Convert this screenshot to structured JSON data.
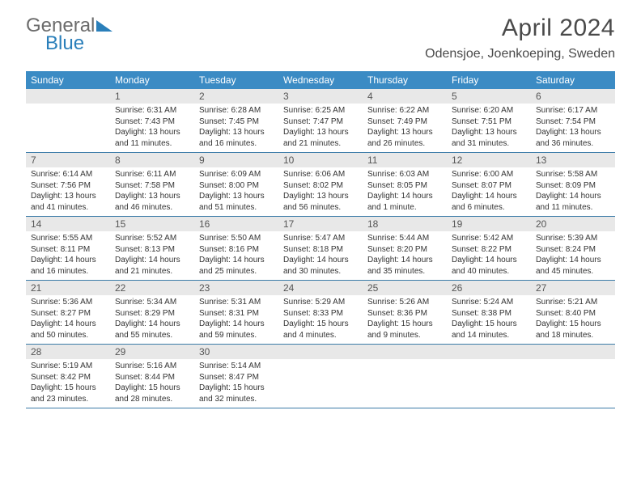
{
  "logo": {
    "text1": "General",
    "text2": "Blue"
  },
  "title": "April 2024",
  "location": "Odensjoe, Joenkoeping, Sweden",
  "colors": {
    "header_bar": "#3b8bc4",
    "daynum_bg": "#e8e8e8",
    "week_border": "#3b7ba8",
    "logo_gray": "#6c6c6c",
    "logo_blue": "#2a7fba"
  },
  "weekdays": [
    "Sunday",
    "Monday",
    "Tuesday",
    "Wednesday",
    "Thursday",
    "Friday",
    "Saturday"
  ],
  "weeks": [
    [
      {
        "n": "",
        "sr": "",
        "ss": "",
        "dl": ""
      },
      {
        "n": "1",
        "sr": "Sunrise: 6:31 AM",
        "ss": "Sunset: 7:43 PM",
        "dl": "Daylight: 13 hours and 11 minutes."
      },
      {
        "n": "2",
        "sr": "Sunrise: 6:28 AM",
        "ss": "Sunset: 7:45 PM",
        "dl": "Daylight: 13 hours and 16 minutes."
      },
      {
        "n": "3",
        "sr": "Sunrise: 6:25 AM",
        "ss": "Sunset: 7:47 PM",
        "dl": "Daylight: 13 hours and 21 minutes."
      },
      {
        "n": "4",
        "sr": "Sunrise: 6:22 AM",
        "ss": "Sunset: 7:49 PM",
        "dl": "Daylight: 13 hours and 26 minutes."
      },
      {
        "n": "5",
        "sr": "Sunrise: 6:20 AM",
        "ss": "Sunset: 7:51 PM",
        "dl": "Daylight: 13 hours and 31 minutes."
      },
      {
        "n": "6",
        "sr": "Sunrise: 6:17 AM",
        "ss": "Sunset: 7:54 PM",
        "dl": "Daylight: 13 hours and 36 minutes."
      }
    ],
    [
      {
        "n": "7",
        "sr": "Sunrise: 6:14 AM",
        "ss": "Sunset: 7:56 PM",
        "dl": "Daylight: 13 hours and 41 minutes."
      },
      {
        "n": "8",
        "sr": "Sunrise: 6:11 AM",
        "ss": "Sunset: 7:58 PM",
        "dl": "Daylight: 13 hours and 46 minutes."
      },
      {
        "n": "9",
        "sr": "Sunrise: 6:09 AM",
        "ss": "Sunset: 8:00 PM",
        "dl": "Daylight: 13 hours and 51 minutes."
      },
      {
        "n": "10",
        "sr": "Sunrise: 6:06 AM",
        "ss": "Sunset: 8:02 PM",
        "dl": "Daylight: 13 hours and 56 minutes."
      },
      {
        "n": "11",
        "sr": "Sunrise: 6:03 AM",
        "ss": "Sunset: 8:05 PM",
        "dl": "Daylight: 14 hours and 1 minute."
      },
      {
        "n": "12",
        "sr": "Sunrise: 6:00 AM",
        "ss": "Sunset: 8:07 PM",
        "dl": "Daylight: 14 hours and 6 minutes."
      },
      {
        "n": "13",
        "sr": "Sunrise: 5:58 AM",
        "ss": "Sunset: 8:09 PM",
        "dl": "Daylight: 14 hours and 11 minutes."
      }
    ],
    [
      {
        "n": "14",
        "sr": "Sunrise: 5:55 AM",
        "ss": "Sunset: 8:11 PM",
        "dl": "Daylight: 14 hours and 16 minutes."
      },
      {
        "n": "15",
        "sr": "Sunrise: 5:52 AM",
        "ss": "Sunset: 8:13 PM",
        "dl": "Daylight: 14 hours and 21 minutes."
      },
      {
        "n": "16",
        "sr": "Sunrise: 5:50 AM",
        "ss": "Sunset: 8:16 PM",
        "dl": "Daylight: 14 hours and 25 minutes."
      },
      {
        "n": "17",
        "sr": "Sunrise: 5:47 AM",
        "ss": "Sunset: 8:18 PM",
        "dl": "Daylight: 14 hours and 30 minutes."
      },
      {
        "n": "18",
        "sr": "Sunrise: 5:44 AM",
        "ss": "Sunset: 8:20 PM",
        "dl": "Daylight: 14 hours and 35 minutes."
      },
      {
        "n": "19",
        "sr": "Sunrise: 5:42 AM",
        "ss": "Sunset: 8:22 PM",
        "dl": "Daylight: 14 hours and 40 minutes."
      },
      {
        "n": "20",
        "sr": "Sunrise: 5:39 AM",
        "ss": "Sunset: 8:24 PM",
        "dl": "Daylight: 14 hours and 45 minutes."
      }
    ],
    [
      {
        "n": "21",
        "sr": "Sunrise: 5:36 AM",
        "ss": "Sunset: 8:27 PM",
        "dl": "Daylight: 14 hours and 50 minutes."
      },
      {
        "n": "22",
        "sr": "Sunrise: 5:34 AM",
        "ss": "Sunset: 8:29 PM",
        "dl": "Daylight: 14 hours and 55 minutes."
      },
      {
        "n": "23",
        "sr": "Sunrise: 5:31 AM",
        "ss": "Sunset: 8:31 PM",
        "dl": "Daylight: 14 hours and 59 minutes."
      },
      {
        "n": "24",
        "sr": "Sunrise: 5:29 AM",
        "ss": "Sunset: 8:33 PM",
        "dl": "Daylight: 15 hours and 4 minutes."
      },
      {
        "n": "25",
        "sr": "Sunrise: 5:26 AM",
        "ss": "Sunset: 8:36 PM",
        "dl": "Daylight: 15 hours and 9 minutes."
      },
      {
        "n": "26",
        "sr": "Sunrise: 5:24 AM",
        "ss": "Sunset: 8:38 PM",
        "dl": "Daylight: 15 hours and 14 minutes."
      },
      {
        "n": "27",
        "sr": "Sunrise: 5:21 AM",
        "ss": "Sunset: 8:40 PM",
        "dl": "Daylight: 15 hours and 18 minutes."
      }
    ],
    [
      {
        "n": "28",
        "sr": "Sunrise: 5:19 AM",
        "ss": "Sunset: 8:42 PM",
        "dl": "Daylight: 15 hours and 23 minutes."
      },
      {
        "n": "29",
        "sr": "Sunrise: 5:16 AM",
        "ss": "Sunset: 8:44 PM",
        "dl": "Daylight: 15 hours and 28 minutes."
      },
      {
        "n": "30",
        "sr": "Sunrise: 5:14 AM",
        "ss": "Sunset: 8:47 PM",
        "dl": "Daylight: 15 hours and 32 minutes."
      },
      {
        "n": "",
        "sr": "",
        "ss": "",
        "dl": ""
      },
      {
        "n": "",
        "sr": "",
        "ss": "",
        "dl": ""
      },
      {
        "n": "",
        "sr": "",
        "ss": "",
        "dl": ""
      },
      {
        "n": "",
        "sr": "",
        "ss": "",
        "dl": ""
      }
    ]
  ]
}
